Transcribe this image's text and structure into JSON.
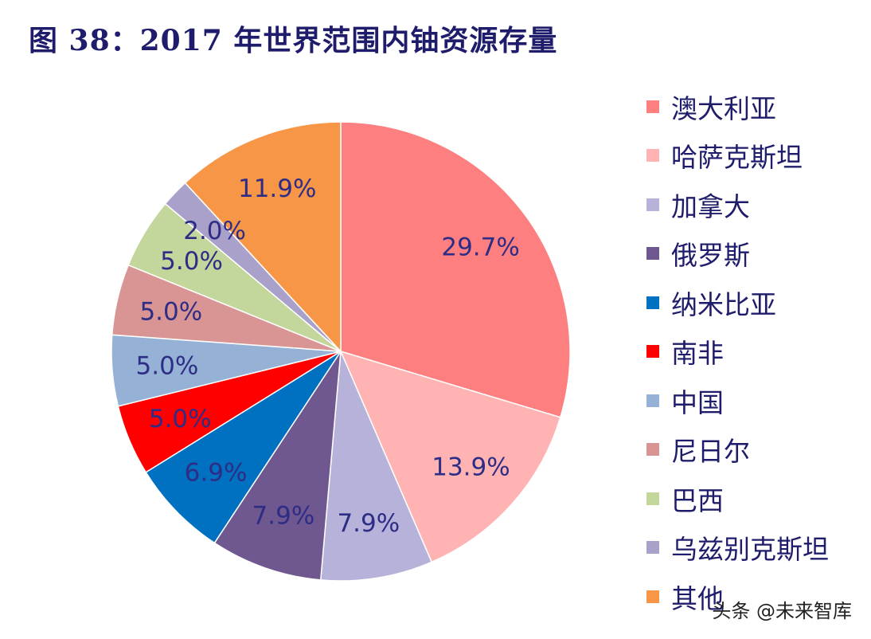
{
  "title": "图 38：2017 年世界范围内铀资源存量",
  "watermark": "头条 @未来智库",
  "chart_data": {
    "type": "pie",
    "title": "图 38：2017 年世界范围内铀资源存量",
    "legend_position": "right",
    "start_angle_deg": 0,
    "direction": "clockwise",
    "slices": [
      {
        "name": "澳大利亚",
        "value": 29.7,
        "label": "29.7%",
        "color": "#fe7f7f"
      },
      {
        "name": "哈萨克斯坦",
        "value": 13.9,
        "label": "13.9%",
        "color": "#ffb3b3"
      },
      {
        "name": "加拿大",
        "value": 7.9,
        "label": "7.9%",
        "color": "#b6b2d9"
      },
      {
        "name": "俄罗斯",
        "value": 7.9,
        "label": "7.9%",
        "color": "#6f578f"
      },
      {
        "name": "纳米比亚",
        "value": 6.9,
        "label": "6.9%",
        "color": "#0070c0"
      },
      {
        "name": "南非",
        "value": 5.0,
        "label": "5.0%",
        "color": "#ff0000"
      },
      {
        "name": "中国",
        "value": 5.0,
        "label": "5.0%",
        "color": "#95b2d6"
      },
      {
        "name": "尼日尔",
        "value": 5.0,
        "label": "5.0%",
        "color": "#d99594"
      },
      {
        "name": "巴西",
        "value": 5.0,
        "label": "5.0%",
        "color": "#c3d69b"
      },
      {
        "name": "乌兹别克斯坦",
        "value": 2.0,
        "label": "2.0%",
        "color": "#a9a1c9"
      },
      {
        "name": "其他",
        "value": 11.9,
        "label": "11.9%",
        "color": "#f79646"
      }
    ],
    "label_color": "#2e2d86",
    "leader_line_color": "#a6a6a6"
  }
}
